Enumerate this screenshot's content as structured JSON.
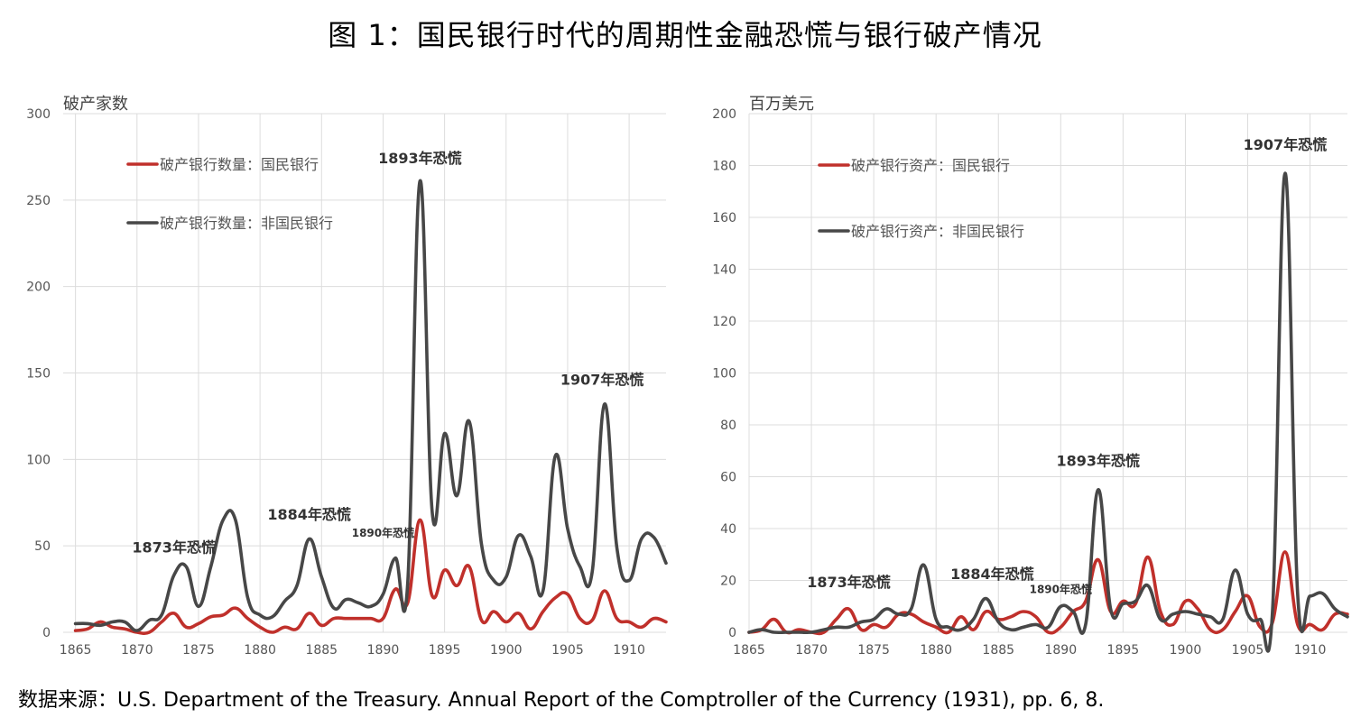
{
  "title": "图 1：国民银行时代的周期性金融恐慌与银行破产情况",
  "source": "数据来源：U.S. Department of the Treasury. Annual Report of the Comptroller of the Currency (1931), pp. 6, 8.",
  "colors": {
    "national": "#c0302b",
    "non_national": "#474747",
    "grid": "#dcdcdc",
    "axis_text": "#555555"
  },
  "chart_data": [
    {
      "type": "line",
      "ylabel": "破产家数",
      "ylim": [
        0,
        300
      ],
      "yticks": [
        0,
        50,
        100,
        150,
        200,
        250,
        300
      ],
      "xlim": [
        1864,
        1913
      ],
      "xticks": [
        1865,
        1870,
        1875,
        1880,
        1885,
        1890,
        1895,
        1900,
        1905,
        1910
      ],
      "grid": true,
      "legend": "top-left",
      "x": [
        1865,
        1866,
        1867,
        1868,
        1869,
        1870,
        1871,
        1872,
        1873,
        1874,
        1875,
        1876,
        1877,
        1878,
        1879,
        1880,
        1881,
        1882,
        1883,
        1884,
        1885,
        1886,
        1887,
        1888,
        1889,
        1890,
        1891,
        1892,
        1893,
        1894,
        1895,
        1896,
        1897,
        1898,
        1899,
        1900,
        1901,
        1902,
        1903,
        1904,
        1905,
        1906,
        1907,
        1908,
        1909,
        1910,
        1911,
        1912,
        1913
      ],
      "series": [
        {
          "name": "破产银行数量：国民银行",
          "color": "#c0302b",
          "values": [
            1,
            2,
            6,
            3,
            2,
            0,
            0,
            6,
            11,
            3,
            5,
            9,
            10,
            14,
            8,
            3,
            0,
            3,
            2,
            11,
            4,
            8,
            8,
            8,
            8,
            8,
            25,
            17,
            65,
            21,
            36,
            27,
            38,
            7,
            12,
            6,
            11,
            2,
            12,
            20,
            22,
            8,
            7,
            24,
            8,
            6,
            3,
            8,
            6
          ]
        },
        {
          "name": "破产银行数量：非国民银行",
          "color": "#474747",
          "values": [
            5,
            5,
            4,
            6,
            6,
            1,
            7,
            10,
            33,
            38,
            15,
            38,
            65,
            65,
            20,
            10,
            9,
            18,
            27,
            54,
            32,
            14,
            19,
            17,
            15,
            22,
            43,
            28,
            261,
            69,
            115,
            79,
            122,
            51,
            30,
            32,
            56,
            44,
            24,
            102,
            60,
            38,
            35,
            132,
            49,
            30,
            54,
            55,
            40
          ]
        }
      ],
      "annotations": [
        {
          "text": "1873年恐慌",
          "x": 1873,
          "y": 40
        },
        {
          "text": "1884年恐慌",
          "x": 1884,
          "y": 58
        },
        {
          "text": "1890年恐慌",
          "x": 1890,
          "y": 47
        },
        {
          "text": "1893年恐慌",
          "x": 1893,
          "y": 265
        },
        {
          "text": "1907年恐慌",
          "x": 1907.8,
          "y": 137
        }
      ]
    },
    {
      "type": "line",
      "ylabel": "百万美元",
      "ylim": [
        0,
        200
      ],
      "yticks": [
        0,
        20,
        40,
        60,
        80,
        100,
        120,
        140,
        160,
        180,
        200
      ],
      "xlim": [
        1865,
        1913
      ],
      "xticks": [
        1865,
        1870,
        1875,
        1880,
        1885,
        1890,
        1895,
        1900,
        1905,
        1910
      ],
      "grid": true,
      "legend": "top-left",
      "x": [
        1865,
        1866,
        1867,
        1868,
        1869,
        1870,
        1871,
        1872,
        1873,
        1874,
        1875,
        1876,
        1877,
        1878,
        1879,
        1880,
        1881,
        1882,
        1883,
        1884,
        1885,
        1886,
        1887,
        1888,
        1889,
        1890,
        1891,
        1892,
        1893,
        1894,
        1895,
        1896,
        1897,
        1898,
        1899,
        1900,
        1901,
        1902,
        1903,
        1904,
        1905,
        1906,
        1907,
        1908,
        1909,
        1910,
        1911,
        1912,
        1913
      ],
      "series": [
        {
          "name": "破产银行资产：国民银行",
          "color": "#c0302b",
          "values": [
            0,
            1,
            5,
            0,
            1,
            0,
            0,
            5,
            9,
            1,
            3,
            2,
            7,
            7,
            4,
            2,
            0,
            6,
            1,
            8,
            5,
            6,
            8,
            6,
            0,
            2,
            8,
            12,
            28,
            8,
            12,
            11,
            29,
            8,
            3,
            12,
            9,
            1,
            1,
            8,
            14,
            2,
            4,
            31,
            3,
            3,
            1,
            7,
            7
          ]
        },
        {
          "name": "破产银行资产：非国民银行",
          "color": "#474747",
          "values": [
            0,
            1,
            0,
            0,
            0,
            0,
            1,
            2,
            2,
            4,
            5,
            9,
            7,
            9,
            26,
            5,
            2,
            1,
            5,
            13,
            4,
            1,
            2,
            3,
            2,
            10,
            8,
            3,
            55,
            9,
            11,
            12,
            18,
            5,
            7,
            8,
            7,
            6,
            5,
            24,
            7,
            5,
            9,
            177,
            15,
            14,
            15,
            9,
            6
          ]
        }
      ],
      "annotations": [
        {
          "text": "1873年恐慌",
          "x": 1873,
          "y": 14
        },
        {
          "text": "1884年恐慌",
          "x": 1884.5,
          "y": 17
        },
        {
          "text": "1890年恐慌",
          "x": 1890,
          "y": 11
        },
        {
          "text": "1893年恐慌",
          "x": 1893,
          "y": 60
        },
        {
          "text": "1907年恐慌",
          "x": 1908,
          "y": 182
        }
      ]
    }
  ]
}
